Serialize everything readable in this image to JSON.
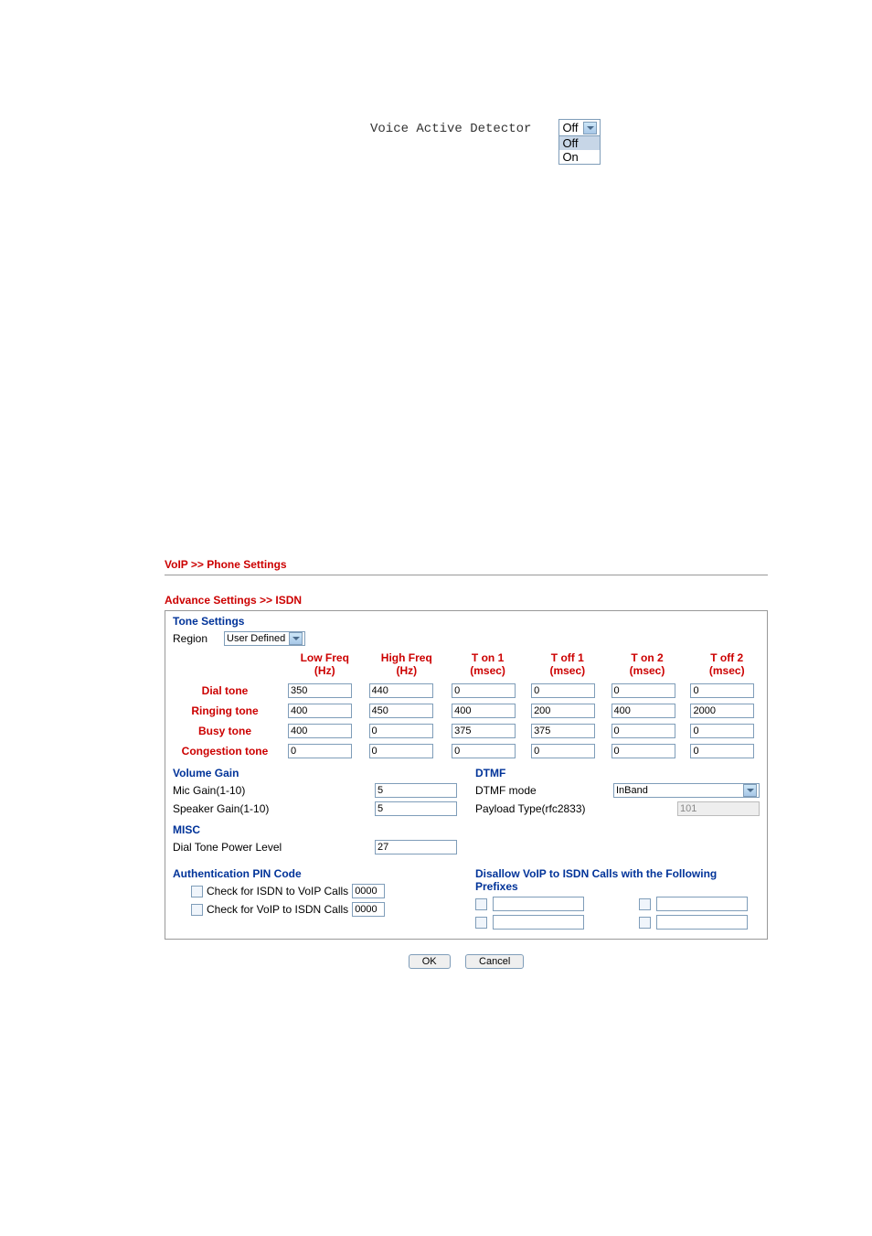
{
  "vad": {
    "label": "Voice Active Detector",
    "selected": "Off",
    "options": [
      "Off",
      "On"
    ],
    "highlighted": "Off"
  },
  "breadcrumb": "VoIP >> Phone Settings",
  "advance_title": "Advance Settings >> ISDN",
  "tone": {
    "section": "Tone Settings",
    "region_label": "Region",
    "region_value": "User Defined",
    "headers": [
      "",
      "Low Freq (Hz)",
      "High Freq (Hz)",
      "T on 1 (msec)",
      "T off 1 (msec)",
      "T on 2 (msec)",
      "T off 2 (msec)"
    ],
    "rows": [
      {
        "label": "Dial tone",
        "vals": [
          "350",
          "440",
          "0",
          "0",
          "0",
          "0"
        ]
      },
      {
        "label": "Ringing tone",
        "vals": [
          "400",
          "450",
          "400",
          "200",
          "400",
          "2000"
        ]
      },
      {
        "label": "Busy tone",
        "vals": [
          "400",
          "0",
          "375",
          "375",
          "0",
          "0"
        ]
      },
      {
        "label": "Congestion tone",
        "vals": [
          "0",
          "0",
          "0",
          "0",
          "0",
          "0"
        ]
      }
    ]
  },
  "volume": {
    "section": "Volume Gain",
    "mic_label": "Mic Gain(1-10)",
    "mic_value": "5",
    "spk_label": "Speaker Gain(1-10)",
    "spk_value": "5"
  },
  "dtmf": {
    "section": "DTMF",
    "mode_label": "DTMF mode",
    "mode_value": "InBand",
    "payload_label": "Payload Type(rfc2833)",
    "payload_value": "101"
  },
  "misc": {
    "section": "MISC",
    "dtpl_label": "Dial Tone Power Level",
    "dtpl_value": "27"
  },
  "auth": {
    "section": "Authentication PIN Code",
    "isdn_to_voip_label": "Check for ISDN to VoIP Calls",
    "isdn_to_voip_value": "0000",
    "voip_to_isdn_label": "Check for VoIP to ISDN Calls",
    "voip_to_isdn_value": "0000"
  },
  "disallow": {
    "section": "Disallow VoIP to ISDN Calls with the Following Prefixes",
    "p1": "",
    "p2": "",
    "p3": "",
    "p4": ""
  },
  "buttons": {
    "ok": "OK",
    "cancel": "Cancel"
  }
}
